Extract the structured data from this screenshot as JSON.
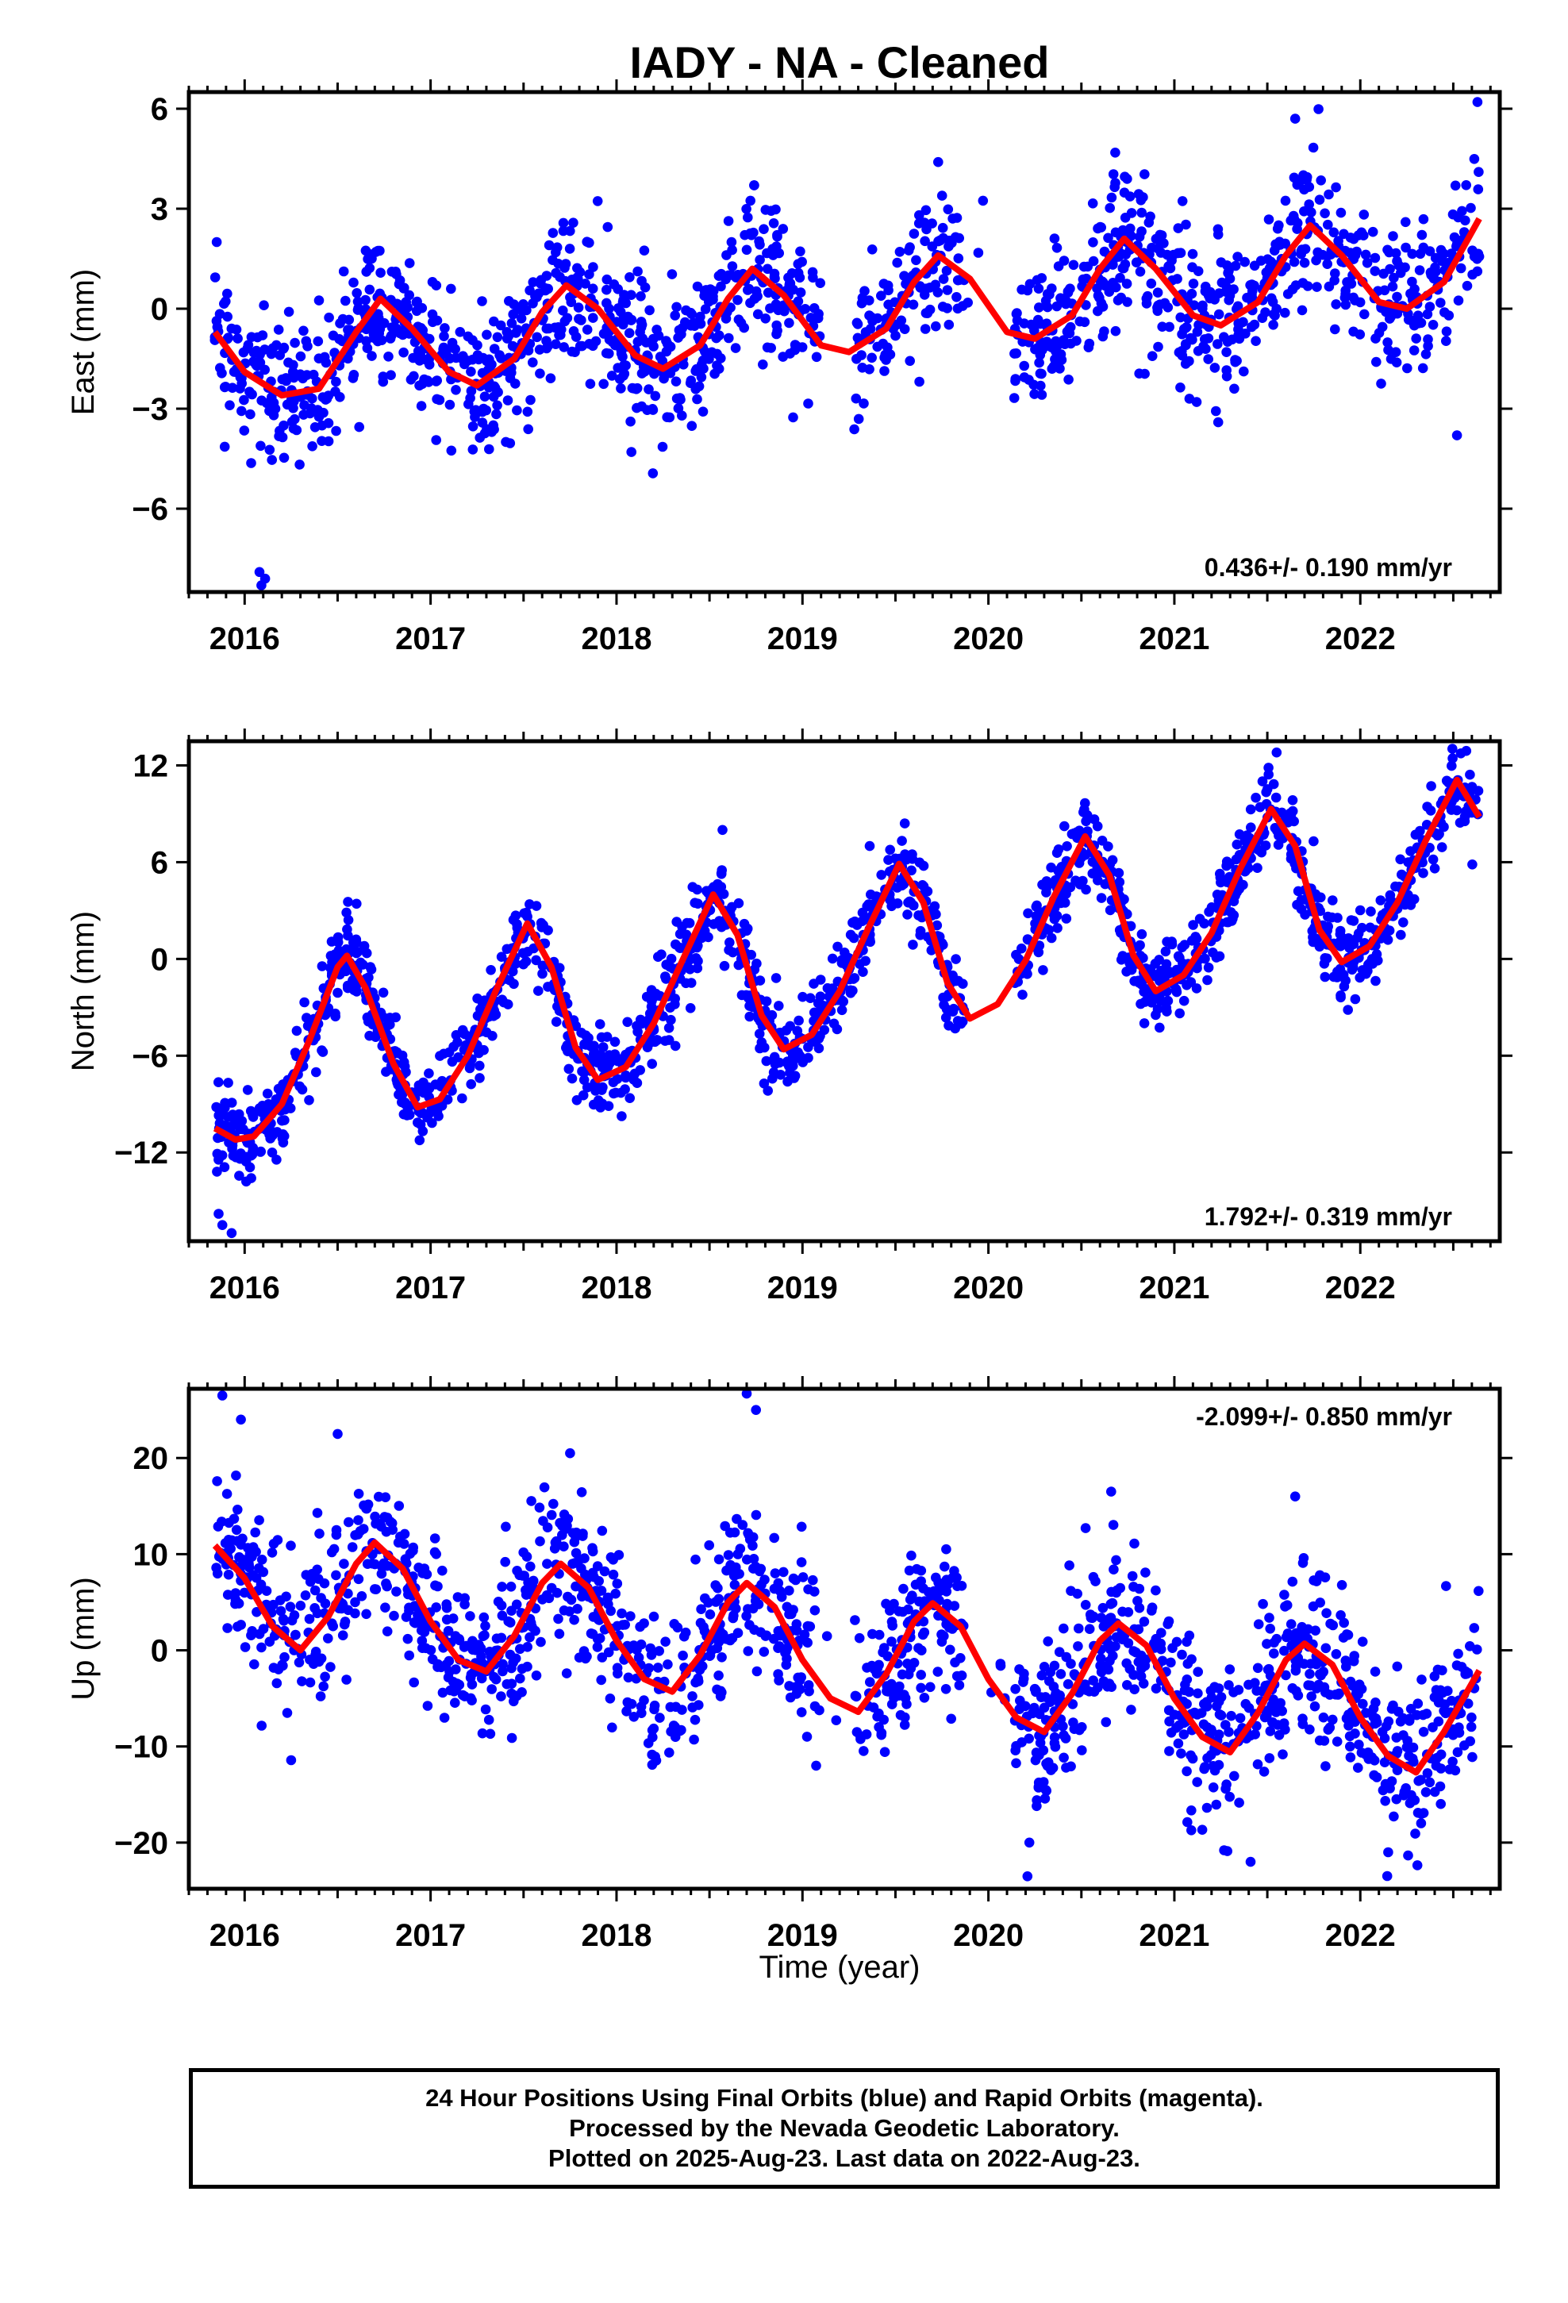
{
  "title": "IADY  - NA - Cleaned",
  "colors": {
    "points": "#0000ff",
    "fit": "#ff0000",
    "frame": "#000000"
  },
  "xlabel": "Time (year)",
  "footer": {
    "line1": "24 Hour Positions Using Final Orbits (blue) and Rapid Orbits (magenta).",
    "line2": "Processed by the Nevada Geodetic Laboratory.",
    "line3": "Plotted on 2025-Aug-23. Last data on 2022-Aug-23."
  },
  "chart_data": [
    {
      "type": "scatter",
      "ylabel": "East (mm)",
      "rate_label": "0.436+/- 0.190 mm/yr",
      "rate_position": "bottom-right",
      "xlim": [
        2015.7,
        2022.75
      ],
      "ylim": [
        -8.5,
        6.5
      ],
      "xticks": [
        2016,
        2017,
        2018,
        2019,
        2020,
        2021,
        2022
      ],
      "yticks": [
        6,
        3,
        0,
        -3,
        -6
      ],
      "ytick_labels": [
        "6",
        "3",
        "0",
        "−3",
        "−6"
      ],
      "data_start": 2015.84,
      "data_end": 2022.64,
      "gaps": [
        [
          2019.1,
          2019.28
        ],
        [
          2019.87,
          2020.14
        ]
      ],
      "fit_curve": [
        [
          2015.84,
          -0.7
        ],
        [
          2016.0,
          -1.9
        ],
        [
          2016.2,
          -2.6
        ],
        [
          2016.4,
          -2.4
        ],
        [
          2016.6,
          -0.7
        ],
        [
          2016.73,
          0.3
        ],
        [
          2016.9,
          -0.6
        ],
        [
          2017.1,
          -1.9
        ],
        [
          2017.25,
          -2.3
        ],
        [
          2017.45,
          -1.5
        ],
        [
          2017.6,
          -0.1
        ],
        [
          2017.73,
          0.7
        ],
        [
          2017.9,
          0.0
        ],
        [
          2018.1,
          -1.4
        ],
        [
          2018.25,
          -1.8
        ],
        [
          2018.45,
          -1.1
        ],
        [
          2018.6,
          0.3
        ],
        [
          2018.73,
          1.2
        ],
        [
          2018.9,
          0.4
        ],
        [
          2019.1,
          -1.1
        ],
        [
          2019.25,
          -1.3
        ],
        [
          2019.45,
          -0.6
        ],
        [
          2019.6,
          0.8
        ],
        [
          2019.73,
          1.6
        ],
        [
          2019.9,
          0.9
        ],
        [
          2020.1,
          -0.7
        ],
        [
          2020.25,
          -0.9
        ],
        [
          2020.45,
          -0.2
        ],
        [
          2020.6,
          1.2
        ],
        [
          2020.73,
          2.1
        ],
        [
          2020.9,
          1.2
        ],
        [
          2021.1,
          -0.2
        ],
        [
          2021.25,
          -0.5
        ],
        [
          2021.45,
          0.2
        ],
        [
          2021.6,
          1.6
        ],
        [
          2021.73,
          2.5
        ],
        [
          2021.9,
          1.6
        ],
        [
          2022.1,
          0.2
        ],
        [
          2022.25,
          0.0
        ],
        [
          2022.45,
          0.8
        ],
        [
          2022.64,
          2.7
        ]
      ],
      "scatter": {
        "sigma": 1.1,
        "count": 1650,
        "outliers": [
          [
            2016.09,
            -8.3
          ],
          [
            2016.08,
            -7.9
          ],
          [
            2016.11,
            -8.1
          ],
          [
            2022.63,
            6.2
          ],
          [
            2021.65,
            5.7
          ],
          [
            2019.73,
            4.4
          ],
          [
            2018.74,
            3.7
          ],
          [
            2015.85,
            2.0
          ],
          [
            2018.08,
            -4.3
          ],
          [
            2022.52,
            -3.8
          ],
          [
            2021.12,
            -2.8
          ]
        ]
      }
    },
    {
      "type": "scatter",
      "ylabel": "North (mm)",
      "rate_label": "1.792+/- 0.319 mm/yr",
      "rate_position": "bottom-right",
      "xlim": [
        2015.7,
        2022.75
      ],
      "ylim": [
        -17.5,
        13.5
      ],
      "xticks": [
        2016,
        2017,
        2018,
        2019,
        2020,
        2021,
        2022
      ],
      "yticks": [
        12,
        6,
        0,
        -6,
        -12
      ],
      "ytick_labels": [
        "12",
        "6",
        "0",
        "−6",
        "−12"
      ],
      "data_start": 2015.84,
      "data_end": 2022.64,
      "gaps": [
        [
          2019.87,
          2020.14
        ]
      ],
      "fit_curve": [
        [
          2015.84,
          -10.5
        ],
        [
          2015.95,
          -11.2
        ],
        [
          2016.05,
          -11.0
        ],
        [
          2016.2,
          -9.0
        ],
        [
          2016.35,
          -5.0
        ],
        [
          2016.5,
          -0.5
        ],
        [
          2016.55,
          0.2
        ],
        [
          2016.65,
          -1.8
        ],
        [
          2016.8,
          -6.5
        ],
        [
          2016.93,
          -9.2
        ],
        [
          2017.05,
          -8.7
        ],
        [
          2017.2,
          -6.0
        ],
        [
          2017.35,
          -2.0
        ],
        [
          2017.52,
          2.2
        ],
        [
          2017.65,
          -0.5
        ],
        [
          2017.78,
          -5.5
        ],
        [
          2017.9,
          -7.5
        ],
        [
          2018.05,
          -6.7
        ],
        [
          2018.2,
          -4.0
        ],
        [
          2018.35,
          -0.2
        ],
        [
          2018.52,
          4.0
        ],
        [
          2018.65,
          1.5
        ],
        [
          2018.78,
          -3.5
        ],
        [
          2018.9,
          -5.6
        ],
        [
          2019.05,
          -4.7
        ],
        [
          2019.2,
          -2.0
        ],
        [
          2019.35,
          1.8
        ],
        [
          2019.52,
          5.9
        ],
        [
          2019.65,
          3.5
        ],
        [
          2019.78,
          -1.5
        ],
        [
          2019.9,
          -3.7
        ],
        [
          2020.05,
          -2.8
        ],
        [
          2020.2,
          -0.1
        ],
        [
          2020.35,
          3.8
        ],
        [
          2020.52,
          7.6
        ],
        [
          2020.65,
          5.2
        ],
        [
          2020.78,
          0.2
        ],
        [
          2020.9,
          -2.0
        ],
        [
          2021.05,
          -1.0
        ],
        [
          2021.2,
          1.6
        ],
        [
          2021.35,
          5.5
        ],
        [
          2021.52,
          9.3
        ],
        [
          2021.65,
          7.0
        ],
        [
          2021.78,
          1.8
        ],
        [
          2021.9,
          -0.2
        ],
        [
          2022.05,
          0.8
        ],
        [
          2022.2,
          3.5
        ],
        [
          2022.35,
          7.3
        ],
        [
          2022.52,
          11.1
        ],
        [
          2022.64,
          8.8
        ]
      ],
      "scatter": {
        "sigma": 1.3,
        "count": 1650,
        "outliers": [
          [
            2015.88,
            -16.5
          ],
          [
            2015.93,
            -17.0
          ],
          [
            2015.86,
            -15.8
          ],
          [
            2021.55,
            12.8
          ],
          [
            2022.57,
            12.9
          ],
          [
            2018.57,
            8.0
          ],
          [
            2019.55,
            8.4
          ]
        ]
      }
    },
    {
      "type": "scatter",
      "ylabel": "Up (mm)",
      "rate_label": "-2.099+/- 0.850 mm/yr",
      "rate_position": "top-right",
      "xlim": [
        2015.7,
        2022.75
      ],
      "ylim": [
        -24.8,
        27.2
      ],
      "xticks": [
        2016,
        2017,
        2018,
        2019,
        2020,
        2021,
        2022
      ],
      "yticks": [
        20,
        10,
        0,
        -10,
        -20
      ],
      "ytick_labels": [
        "20",
        "10",
        "0",
        "−10",
        "−20"
      ],
      "data_start": 2015.84,
      "data_end": 2022.64,
      "gaps": [
        [
          2019.1,
          2019.28
        ],
        [
          2019.87,
          2020.14
        ]
      ],
      "fit_curve": [
        [
          2015.84,
          10.9
        ],
        [
          2016.0,
          7.5
        ],
        [
          2016.15,
          2.5
        ],
        [
          2016.3,
          0.0
        ],
        [
          2016.45,
          3.5
        ],
        [
          2016.6,
          9.0
        ],
        [
          2016.7,
          11.2
        ],
        [
          2016.85,
          8.5
        ],
        [
          2017.0,
          3.0
        ],
        [
          2017.15,
          -1.0
        ],
        [
          2017.3,
          -2.2
        ],
        [
          2017.45,
          1.5
        ],
        [
          2017.6,
          7.0
        ],
        [
          2017.7,
          9.0
        ],
        [
          2017.85,
          6.5
        ],
        [
          2018.0,
          1.0
        ],
        [
          2018.15,
          -3.0
        ],
        [
          2018.3,
          -4.3
        ],
        [
          2018.45,
          -0.5
        ],
        [
          2018.6,
          5.0
        ],
        [
          2018.7,
          7.0
        ],
        [
          2018.85,
          4.5
        ],
        [
          2019.0,
          -1.0
        ],
        [
          2019.15,
          -5.0
        ],
        [
          2019.3,
          -6.4
        ],
        [
          2019.45,
          -2.5
        ],
        [
          2019.6,
          3.0
        ],
        [
          2019.7,
          4.9
        ],
        [
          2019.85,
          2.5
        ],
        [
          2020.0,
          -3.0
        ],
        [
          2020.15,
          -7.0
        ],
        [
          2020.3,
          -8.5
        ],
        [
          2020.45,
          -4.5
        ],
        [
          2020.6,
          1.0
        ],
        [
          2020.7,
          2.8
        ],
        [
          2020.85,
          0.5
        ],
        [
          2021.0,
          -5.0
        ],
        [
          2021.15,
          -9.0
        ],
        [
          2021.3,
          -10.6
        ],
        [
          2021.45,
          -6.5
        ],
        [
          2021.6,
          -1.0
        ],
        [
          2021.7,
          0.7
        ],
        [
          2021.85,
          -1.5
        ],
        [
          2022.0,
          -7.0
        ],
        [
          2022.15,
          -11.0
        ],
        [
          2022.3,
          -12.7
        ],
        [
          2022.45,
          -8.5
        ],
        [
          2022.64,
          -2.1
        ]
      ],
      "scatter": {
        "sigma": 4.2,
        "count": 1650,
        "outliers": [
          [
            2015.88,
            26.5
          ],
          [
            2015.98,
            24.0
          ],
          [
            2018.7,
            26.7
          ],
          [
            2018.75,
            25.0
          ],
          [
            2017.75,
            20.5
          ],
          [
            2016.5,
            22.5
          ],
          [
            2020.21,
            -23.5
          ],
          [
            2020.22,
            -20.0
          ],
          [
            2021.41,
            -22.0
          ],
          [
            2022.15,
            -21.0
          ],
          [
            2020.66,
            16.5
          ],
          [
            2021.65,
            16.0
          ]
        ]
      }
    }
  ]
}
